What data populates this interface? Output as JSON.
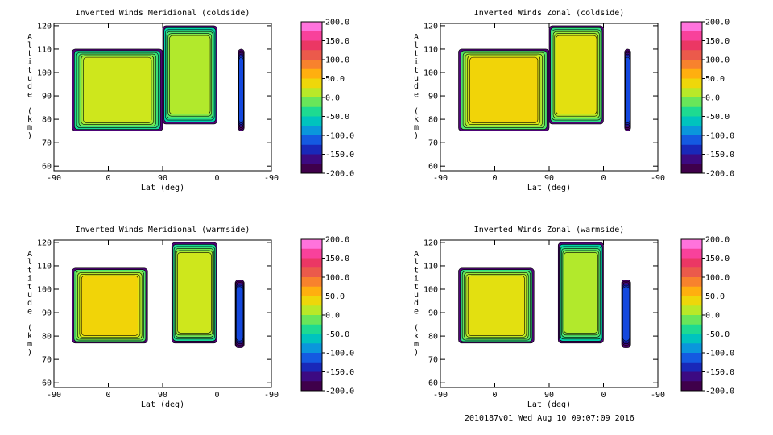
{
  "footer_text": "2010187v01 Wed Aug 10 09:07:09 2016",
  "chart_data": [
    {
      "type": "contour",
      "title": "Inverted Winds Meridional (coldside)",
      "xlabel": "Lat (deg)",
      "ylabel": "Altitude (km)",
      "x_ticks": [
        "-90",
        "0",
        "90",
        "0",
        "-90"
      ],
      "y_ticks": [
        60,
        70,
        80,
        90,
        100,
        110,
        120
      ],
      "ylim": [
        58,
        121
      ],
      "colorbar": {
        "min": -200,
        "max": 200,
        "labels": [
          "200.0",
          "150.0",
          "100.0",
          "50.0",
          "0.0",
          "-50.0",
          "-100.0",
          "-150.0",
          "-200.0"
        ]
      },
      "regions": [
        {
          "x_range": [
            -60,
            90
          ],
          "alt_range": [
            75,
            110
          ],
          "mean_wind": -10
        },
        {
          "x_range": [
            90,
            180
          ],
          "alt_range": [
            78,
            120
          ],
          "mean_wind": -20
        },
        {
          "x_range": [
            215,
            225
          ],
          "alt_range": [
            75,
            110
          ],
          "mean_wind": -150
        }
      ]
    },
    {
      "type": "contour",
      "title": "Inverted Winds Zonal (coldside)",
      "xlabel": "Lat (deg)",
      "ylabel": "Altitude (km)",
      "x_ticks": [
        "-90",
        "0",
        "90",
        "0",
        "-90"
      ],
      "y_ticks": [
        60,
        70,
        80,
        90,
        100,
        110,
        120
      ],
      "ylim": [
        58,
        121
      ],
      "colorbar": {
        "min": -200,
        "max": 200,
        "labels": [
          "200.0",
          "150.0",
          "100.0",
          "50.0",
          "0.0",
          "-50.0",
          "-100.0",
          "-150.0",
          "-200.0"
        ]
      },
      "regions": [
        {
          "x_range": [
            -60,
            90
          ],
          "alt_range": [
            75,
            110
          ],
          "mean_wind": 10
        },
        {
          "x_range": [
            90,
            180
          ],
          "alt_range": [
            78,
            120
          ],
          "mean_wind": 0
        },
        {
          "x_range": [
            215,
            225
          ],
          "alt_range": [
            75,
            110
          ],
          "mean_wind": -150
        }
      ]
    },
    {
      "type": "contour",
      "title": "Inverted Winds Meridional (warmside)",
      "xlabel": "Lat (deg)",
      "ylabel": "Altitude (km)",
      "x_ticks": [
        "-90",
        "0",
        "90",
        "0",
        "-90"
      ],
      "y_ticks": [
        60,
        70,
        80,
        90,
        100,
        110,
        120
      ],
      "ylim": [
        58,
        121
      ],
      "colorbar": {
        "min": -200,
        "max": 200,
        "labels": [
          "200.0",
          "150.0",
          "100.0",
          "50.0",
          "0.0",
          "-50.0",
          "-100.0",
          "-150.0",
          "-200.0"
        ]
      },
      "regions": [
        {
          "x_range": [
            -60,
            65
          ],
          "alt_range": [
            77,
            109
          ],
          "mean_wind": 10
        },
        {
          "x_range": [
            105,
            180
          ],
          "alt_range": [
            77,
            120
          ],
          "mean_wind": -10
        },
        {
          "x_range": [
            210,
            225
          ],
          "alt_range": [
            75,
            104
          ],
          "mean_wind": -150
        }
      ]
    },
    {
      "type": "contour",
      "title": "Inverted Winds Zonal (warmside)",
      "xlabel": "Lat (deg)",
      "ylabel": "Altitude (km)",
      "x_ticks": [
        "-90",
        "0",
        "90",
        "0",
        "-90"
      ],
      "y_ticks": [
        60,
        70,
        80,
        90,
        100,
        110,
        120
      ],
      "ylim": [
        58,
        121
      ],
      "colorbar": {
        "min": -200,
        "max": 200,
        "labels": [
          "200.0",
          "150.0",
          "100.0",
          "50.0",
          "0.0",
          "-50.0",
          "-100.0",
          "-150.0",
          "-200.0"
        ]
      },
      "regions": [
        {
          "x_range": [
            -60,
            65
          ],
          "alt_range": [
            77,
            109
          ],
          "mean_wind": 0
        },
        {
          "x_range": [
            105,
            180
          ],
          "alt_range": [
            77,
            120
          ],
          "mean_wind": -20
        },
        {
          "x_range": [
            210,
            225
          ],
          "alt_range": [
            75,
            104
          ],
          "mean_wind": -150
        }
      ]
    }
  ]
}
